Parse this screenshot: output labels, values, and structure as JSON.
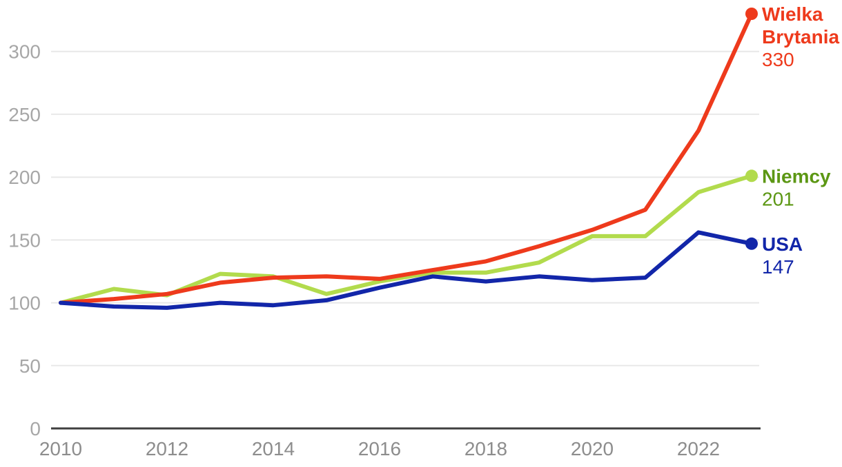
{
  "chart_data": {
    "type": "line",
    "title": "",
    "xlabel": "",
    "ylabel": "",
    "x": [
      2010,
      2011,
      2012,
      2013,
      2014,
      2015,
      2016,
      2017,
      2018,
      2019,
      2020,
      2021,
      2022,
      2023
    ],
    "xticks": [
      2010,
      2012,
      2014,
      2016,
      2018,
      2020,
      2022
    ],
    "yticks": [
      0,
      50,
      100,
      150,
      200,
      250,
      300
    ],
    "ylim": [
      0,
      335
    ],
    "grid": "horizontal-light",
    "legend_position": "right-of-line-endpoints",
    "series": [
      {
        "name": "Niemcy",
        "label_lines": [
          "Niemcy"
        ],
        "end_label": "201",
        "color": "#b2db4d",
        "label_color": "#5c9714",
        "values": [
          100,
          111,
          106,
          123,
          121,
          107,
          117,
          124,
          124,
          132,
          153,
          153,
          188,
          201
        ]
      },
      {
        "name": "Wielka Brytania",
        "label_lines": [
          "Wielka",
          "Brytania"
        ],
        "end_label": "330",
        "color": "#ee3a1c",
        "label_color": "#ee3a1c",
        "values": [
          100,
          103,
          107,
          116,
          120,
          121,
          119,
          126,
          133,
          145,
          158,
          174,
          237,
          330
        ]
      },
      {
        "name": "USA",
        "label_lines": [
          "USA"
        ],
        "end_label": "147",
        "color": "#1226a9",
        "label_color": "#1226a9",
        "values": [
          100,
          97,
          96,
          100,
          98,
          102,
          112,
          121,
          117,
          121,
          118,
          120,
          156,
          147
        ]
      }
    ]
  },
  "colors": {
    "grid": "#e8e8e8",
    "axis_line": "#3f3f3f",
    "y_tick_label": "#a7a7a7",
    "x_tick_label": "#8d8d8d",
    "background": "#ffffff"
  }
}
